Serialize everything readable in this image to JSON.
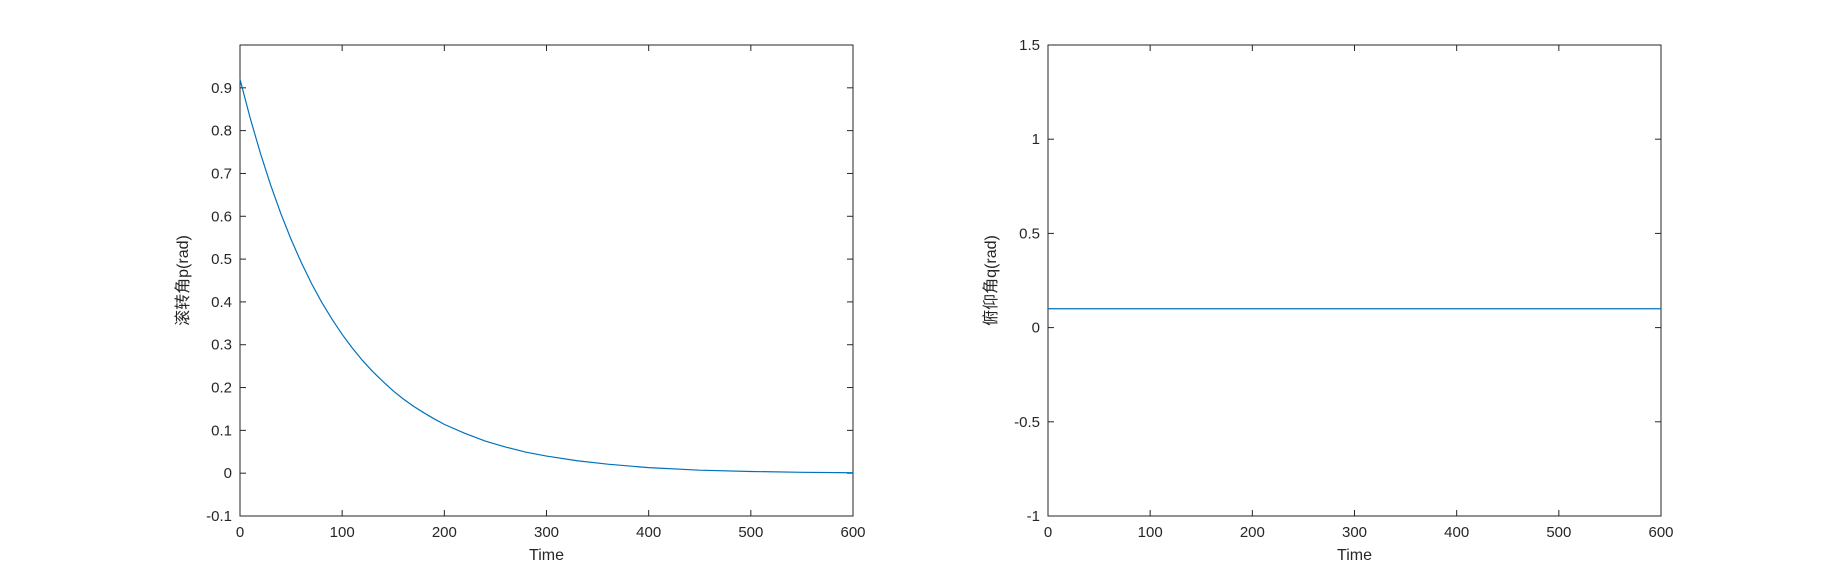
{
  "chart_data": [
    {
      "type": "line",
      "title": "",
      "xlabel": "Time",
      "ylabel": "滚转角p(rad)",
      "xlim": [
        0,
        600
      ],
      "ylim": [
        -0.1,
        1.0
      ],
      "xticks": [
        0,
        100,
        200,
        300,
        400,
        500,
        600
      ],
      "yticks": [
        -0.1,
        0,
        0.1,
        0.2,
        0.3,
        0.4,
        0.5,
        0.6,
        0.7,
        0.8,
        0.9
      ],
      "ytick_labels": [
        "-0.1",
        "0",
        "0.1",
        "0.2",
        "0.3",
        "0.4",
        "0.5",
        "0.6",
        "0.7",
        "0.8",
        "0.9"
      ],
      "grid": false,
      "series": [
        {
          "color": "#0072BD",
          "x": [
            0,
            10,
            20,
            30,
            40,
            50,
            60,
            70,
            80,
            90,
            100,
            110,
            120,
            130,
            140,
            150,
            160,
            170,
            180,
            190,
            200,
            220,
            240,
            260,
            280,
            300,
            330,
            360,
            400,
            450,
            500,
            550,
            600
          ],
          "y": [
            0.92,
            0.829,
            0.747,
            0.673,
            0.606,
            0.546,
            0.492,
            0.443,
            0.399,
            0.36,
            0.324,
            0.292,
            0.263,
            0.237,
            0.214,
            0.192,
            0.173,
            0.156,
            0.141,
            0.127,
            0.114,
            0.093,
            0.075,
            0.061,
            0.049,
            0.04,
            0.029,
            0.021,
            0.013,
            0.007,
            0.004,
            0.002,
            0.001
          ]
        }
      ]
    },
    {
      "type": "line",
      "title": "",
      "xlabel": "Time",
      "ylabel": "俯仰角q(rad)",
      "xlim": [
        0,
        600
      ],
      "ylim": [
        -1,
        1.5
      ],
      "xticks": [
        0,
        100,
        200,
        300,
        400,
        500,
        600
      ],
      "yticks": [
        -1,
        -0.5,
        0,
        0.5,
        1,
        1.5
      ],
      "ytick_labels": [
        "-1",
        "-0.5",
        "0",
        "0.5",
        "1",
        "1.5"
      ],
      "grid": false,
      "series": [
        {
          "color": "#0072BD",
          "x": [
            0,
            600
          ],
          "y": [
            0.1,
            0.1
          ]
        }
      ]
    }
  ]
}
